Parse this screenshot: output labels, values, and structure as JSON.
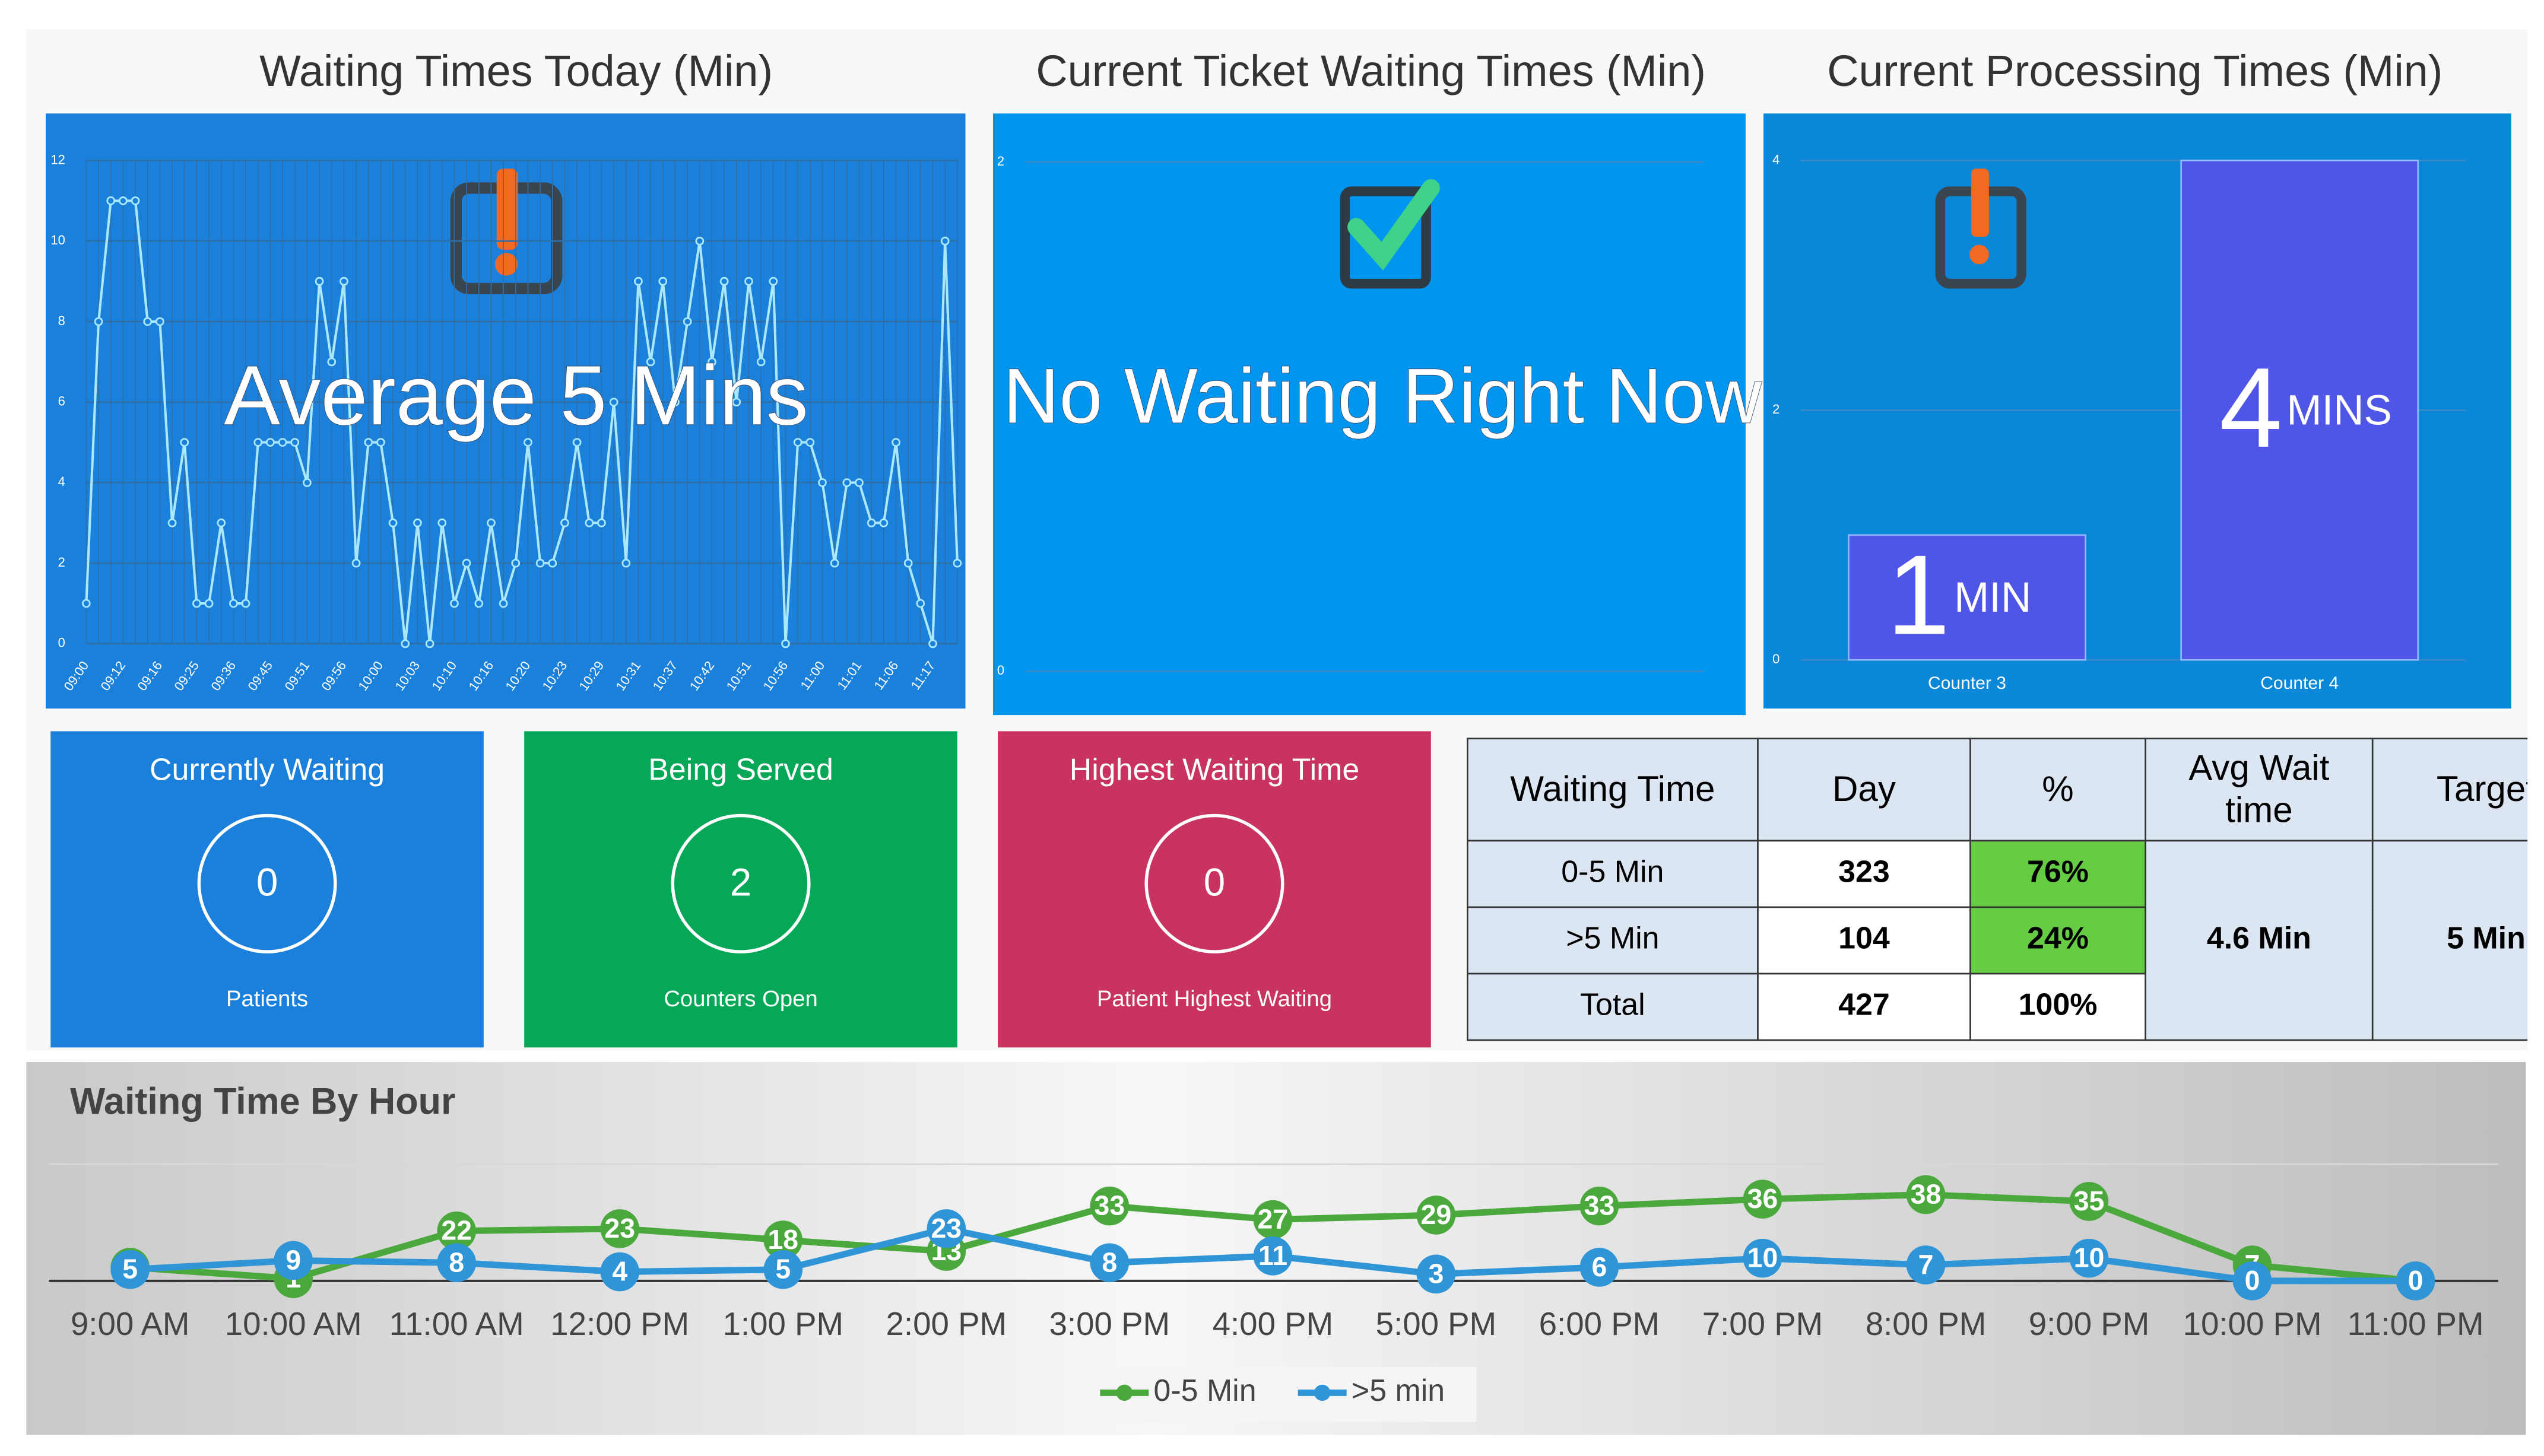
{
  "chart_data": [
    {
      "type": "line",
      "title": "Waiting Times Today (Min)",
      "annotation": "Average 5 Mins",
      "categories": [
        "09:00",
        null,
        null,
        "09:12",
        null,
        null,
        "09:16",
        null,
        null,
        "09:25",
        null,
        null,
        "09:36",
        null,
        null,
        "09:45",
        null,
        null,
        "09:51",
        null,
        null,
        "09:56",
        null,
        null,
        "10:00",
        null,
        null,
        "10:03",
        null,
        null,
        "10:10",
        null,
        null,
        "10:16",
        null,
        null,
        "10:20",
        null,
        null,
        "10:23",
        null,
        null,
        "10:29",
        null,
        null,
        "10:31",
        null,
        null,
        "10:37",
        null,
        null,
        "10:42",
        null,
        null,
        "10:51",
        null,
        null,
        "10:56",
        null,
        null,
        "11:00",
        null,
        null,
        "11:01",
        null,
        null,
        "11:06",
        null,
        null,
        "11:17",
        null,
        null
      ],
      "values": [
        1,
        8,
        11,
        11,
        11,
        8,
        8,
        3,
        5,
        1,
        1,
        3,
        1,
        1,
        5,
        5,
        5,
        5,
        4,
        9,
        7,
        9,
        2,
        5,
        5,
        3,
        0,
        3,
        0,
        3,
        1,
        2,
        1,
        3,
        1,
        2,
        5,
        2,
        2,
        3,
        5,
        3,
        3,
        6,
        2,
        9,
        7,
        9,
        6,
        8,
        10,
        7,
        9,
        6,
        9,
        7,
        9,
        0,
        5,
        5,
        4,
        2,
        4,
        4,
        3,
        3,
        5,
        2,
        1,
        0,
        10,
        2
      ],
      "ylim": [
        0,
        12
      ],
      "yticks": [
        0,
        2,
        4,
        6,
        8,
        10,
        12
      ],
      "grid": true,
      "color": "#a9e8ff",
      "background": "#1a80da"
    },
    {
      "type": "line",
      "title": "Current Ticket Waiting Times (Min)",
      "annotation": "No Waiting Right Now",
      "ylim": [
        0,
        2
      ],
      "yticks": [
        0,
        2
      ],
      "background": "#0096f0"
    },
    {
      "type": "bar",
      "title": "Current Processing Times (Min)",
      "categories": [
        "Counter 3",
        "Counter 4"
      ],
      "values": [
        1,
        4
      ],
      "value_units": [
        "MIN",
        "MINS"
      ],
      "ylim": [
        0,
        4
      ],
      "yticks": [
        0,
        2,
        4
      ],
      "color": "#4f55e6",
      "background": "#0b87d8"
    },
    {
      "type": "line",
      "title": "Waiting Time By Hour",
      "categories": [
        "9:00 AM",
        "10:00 AM",
        "11:00 AM",
        "12:00 PM",
        "1:00 PM",
        "2:00 PM",
        "3:00 PM",
        "4:00 PM",
        "5:00 PM",
        "6:00 PM",
        "7:00 PM",
        "8:00 PM",
        "9:00 PM",
        "10:00 PM",
        "11:00 PM"
      ],
      "series": [
        {
          "name": "0-5 Min",
          "color": "#4aa83c",
          "values": [
            6,
            1,
            22,
            23,
            18,
            13,
            33,
            27,
            29,
            33,
            36,
            38,
            35,
            7,
            0
          ]
        },
        {
          "name": ">5 min",
          "color": "#2f95d6",
          "values": [
            5,
            9,
            8,
            4,
            5,
            23,
            8,
            11,
            3,
            6,
            10,
            7,
            10,
            0,
            0
          ]
        }
      ],
      "ylim": [
        0,
        50
      ],
      "legend": "bottom",
      "data_labels": true
    }
  ],
  "cards": [
    {
      "title": "Currently Waiting",
      "value": "0",
      "caption": "Patients",
      "color": "#1b7fdc"
    },
    {
      "title": "Being Served",
      "value": "2",
      "caption": "Counters Open",
      "color": "#06a857"
    },
    {
      "title": "Highest Waiting Time",
      "value": "0",
      "caption": "Patient Highest Waiting",
      "color": "#c8335f"
    }
  ],
  "table": {
    "header": [
      "Waiting Time",
      "Day",
      "%",
      "Avg Wait time",
      "Target"
    ],
    "rows": [
      [
        "0-5 Min",
        "323",
        "76%"
      ],
      [
        ">5 Min",
        "104",
        "24%"
      ],
      [
        "Total",
        "427",
        "100%"
      ]
    ],
    "avg_wait": "4.6 Min",
    "target": "5 Min"
  }
}
